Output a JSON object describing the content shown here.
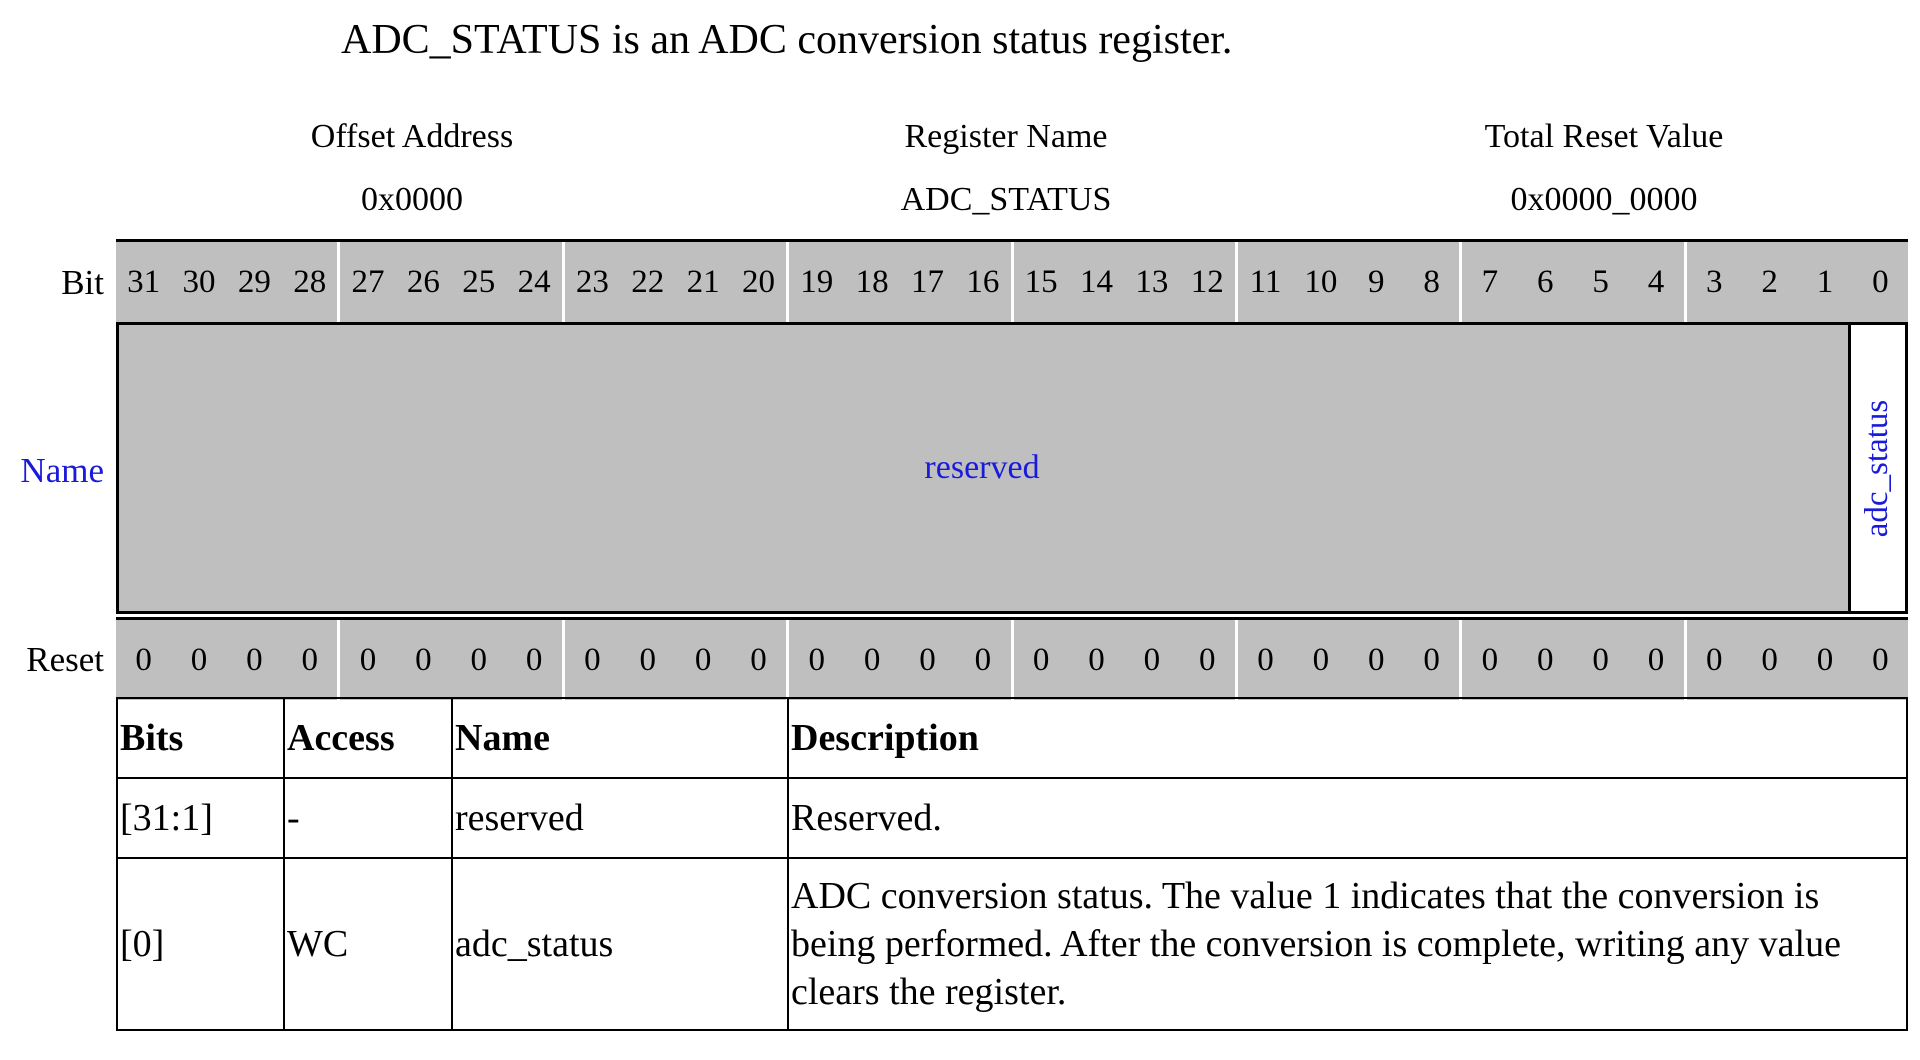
{
  "caption": "ADC_STATUS is an ADC conversion status register.",
  "header": {
    "offset_label": "Offset Address",
    "offset_value": "0x0000",
    "name_label": "Register Name",
    "name_value": "ADC_STATUS",
    "reset_label": "Total Reset Value",
    "reset_value": "0x0000_0000"
  },
  "row_labels": {
    "bit": "Bit",
    "name": "Name",
    "reset": "Reset"
  },
  "bits": [
    "31",
    "30",
    "29",
    "28",
    "27",
    "26",
    "25",
    "24",
    "23",
    "22",
    "21",
    "20",
    "19",
    "18",
    "17",
    "16",
    "15",
    "14",
    "13",
    "12",
    "11",
    "10",
    "9",
    "8",
    "7",
    "6",
    "5",
    "4",
    "3",
    "2",
    "1",
    "0"
  ],
  "reset_values": [
    "0",
    "0",
    "0",
    "0",
    "0",
    "0",
    "0",
    "0",
    "0",
    "0",
    "0",
    "0",
    "0",
    "0",
    "0",
    "0",
    "0",
    "0",
    "0",
    "0",
    "0",
    "0",
    "0",
    "0",
    "0",
    "0",
    "0",
    "0",
    "0",
    "0",
    "0",
    "0"
  ],
  "fields": {
    "reserved": "reserved",
    "adc_status": "adc_status"
  },
  "table": {
    "headers": [
      "Bits",
      "Access",
      "Name",
      "Description"
    ],
    "rows": [
      {
        "bits": "[31:1]",
        "access": "-",
        "name": "reserved",
        "description": "Reserved."
      },
      {
        "bits": "[0]",
        "access": "WC",
        "name": "adc_status",
        "description": "ADC conversion status. The value 1 indicates that the conversion is being performed. After the conversion is complete, writing any value clears the register."
      }
    ]
  }
}
